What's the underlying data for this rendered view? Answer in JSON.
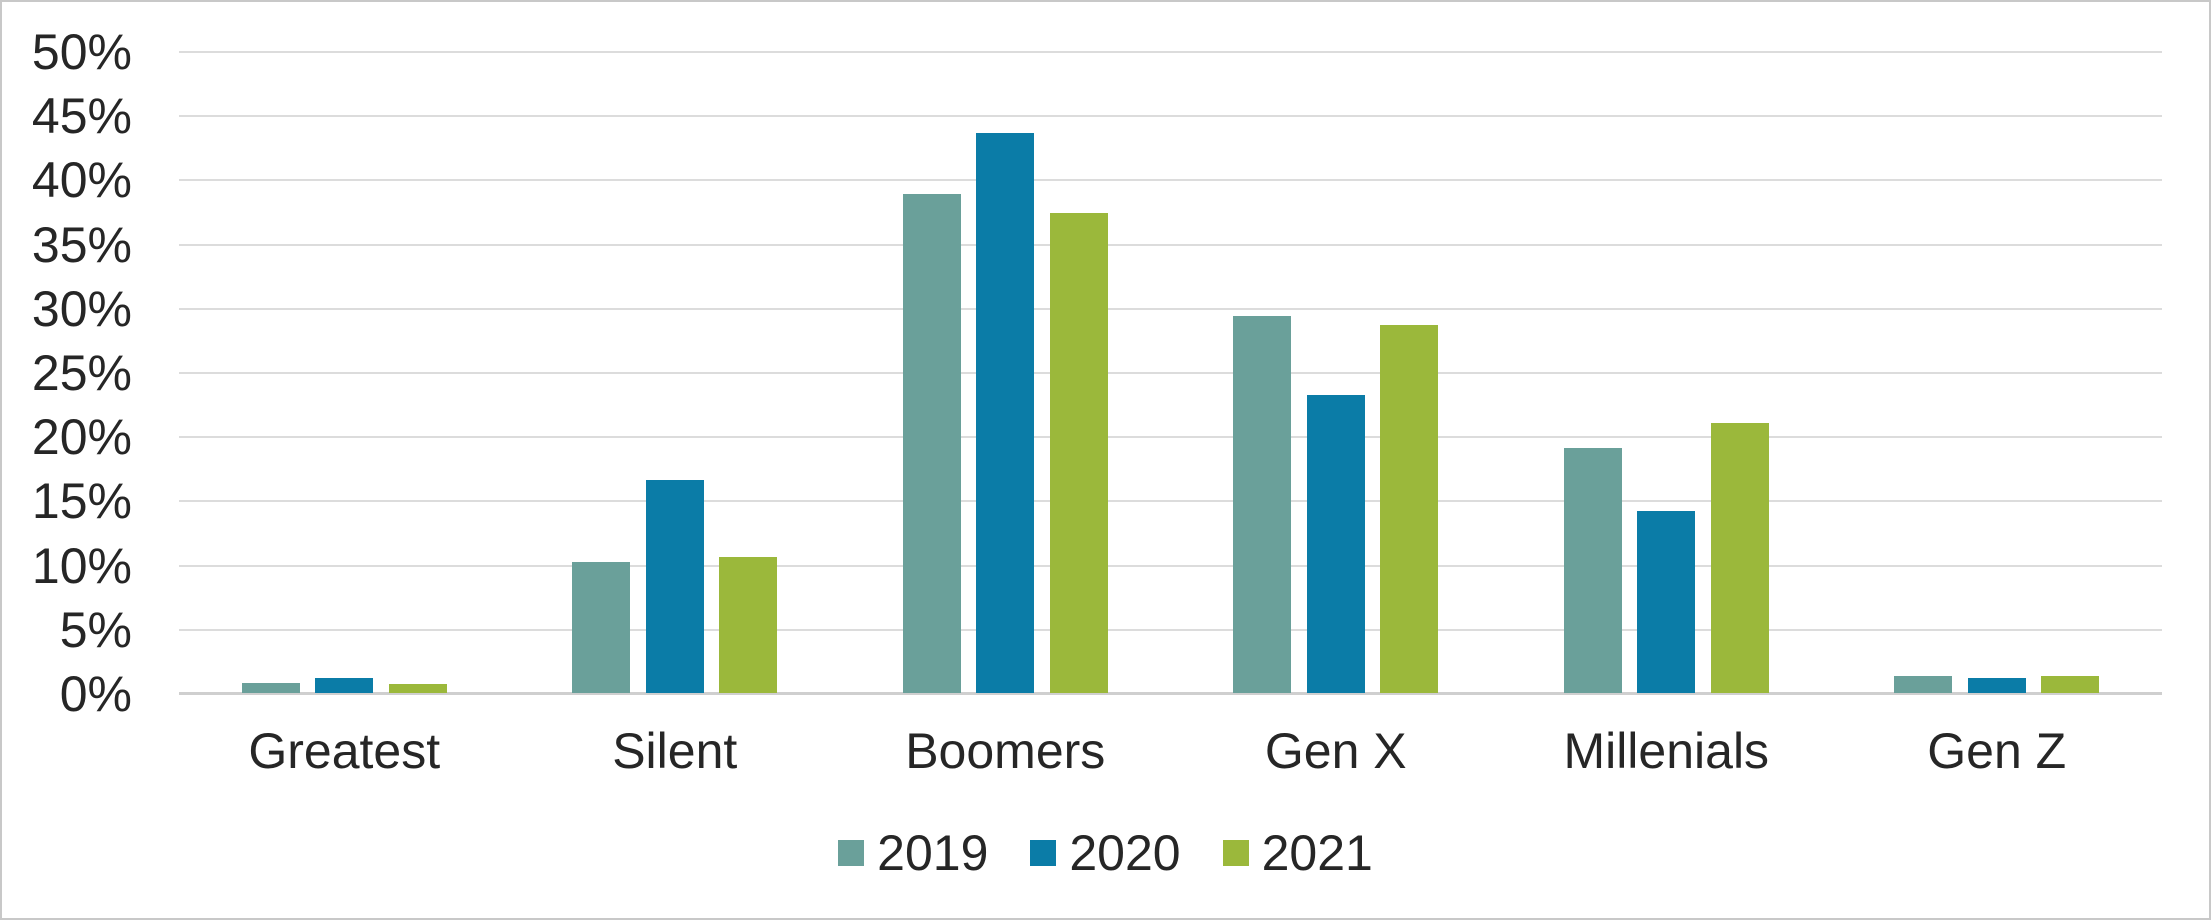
{
  "chart_data": {
    "type": "bar",
    "title": "",
    "categories": [
      "Greatest",
      "Silent",
      "Boomers",
      "Gen X",
      "Millenials",
      "Gen Z"
    ],
    "series": [
      {
        "name": "2019",
        "color": "#6AA09A",
        "values": [
          0.8,
          10.2,
          38.9,
          29.4,
          19.1,
          1.3
        ]
      },
      {
        "name": "2020",
        "color": "#0B7CA7",
        "values": [
          1.2,
          16.6,
          43.6,
          23.2,
          14.2,
          1.2
        ]
      },
      {
        "name": "2021",
        "color": "#9BB83B",
        "values": [
          0.7,
          10.6,
          37.4,
          28.7,
          21.0,
          1.3
        ]
      }
    ],
    "y_axis": {
      "min": 0,
      "max": 50,
      "step": 5,
      "unit": "%",
      "tick_labels": [
        "0%",
        "5%",
        "10%",
        "15%",
        "20%",
        "25%",
        "30%",
        "35%",
        "40%",
        "45%",
        "50%"
      ]
    },
    "x_axis": {
      "label": ""
    },
    "ylim": [
      0,
      50
    ],
    "grid": true,
    "legend_position": "bottom",
    "legend_entries": [
      "2019",
      "2020",
      "2021"
    ],
    "colors": {
      "gridline": "#DCDCDC",
      "axis_line": "#CFCFCF",
      "text": "#262626",
      "background": "#FFFFFF",
      "frame_border": "#C8C8C8"
    }
  }
}
